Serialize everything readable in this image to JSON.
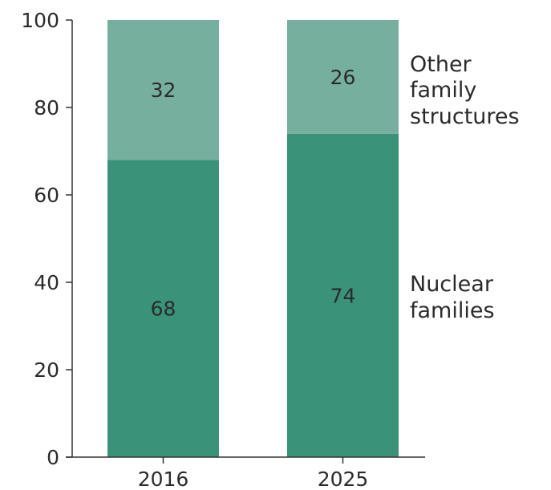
{
  "chart_data": {
    "type": "bar",
    "stacked": true,
    "categories": [
      "2016",
      "2025"
    ],
    "series": [
      {
        "name": "Nuclear families",
        "values": [
          68,
          74
        ],
        "color": "#3a9279"
      },
      {
        "name": "Other family structures",
        "values": [
          32,
          26
        ],
        "color": "#76af9d"
      }
    ],
    "ylim": [
      0,
      100
    ],
    "yticks": [
      0,
      20,
      40,
      60,
      80,
      100
    ],
    "grid": false,
    "legend_placement": "right",
    "title": "",
    "xlabel": "",
    "ylabel": ""
  },
  "legend": {
    "nuclear_line1": "Nuclear",
    "nuclear_line2": "families",
    "other_line1": "Other",
    "other_line2": "family",
    "other_line3": "structures"
  }
}
